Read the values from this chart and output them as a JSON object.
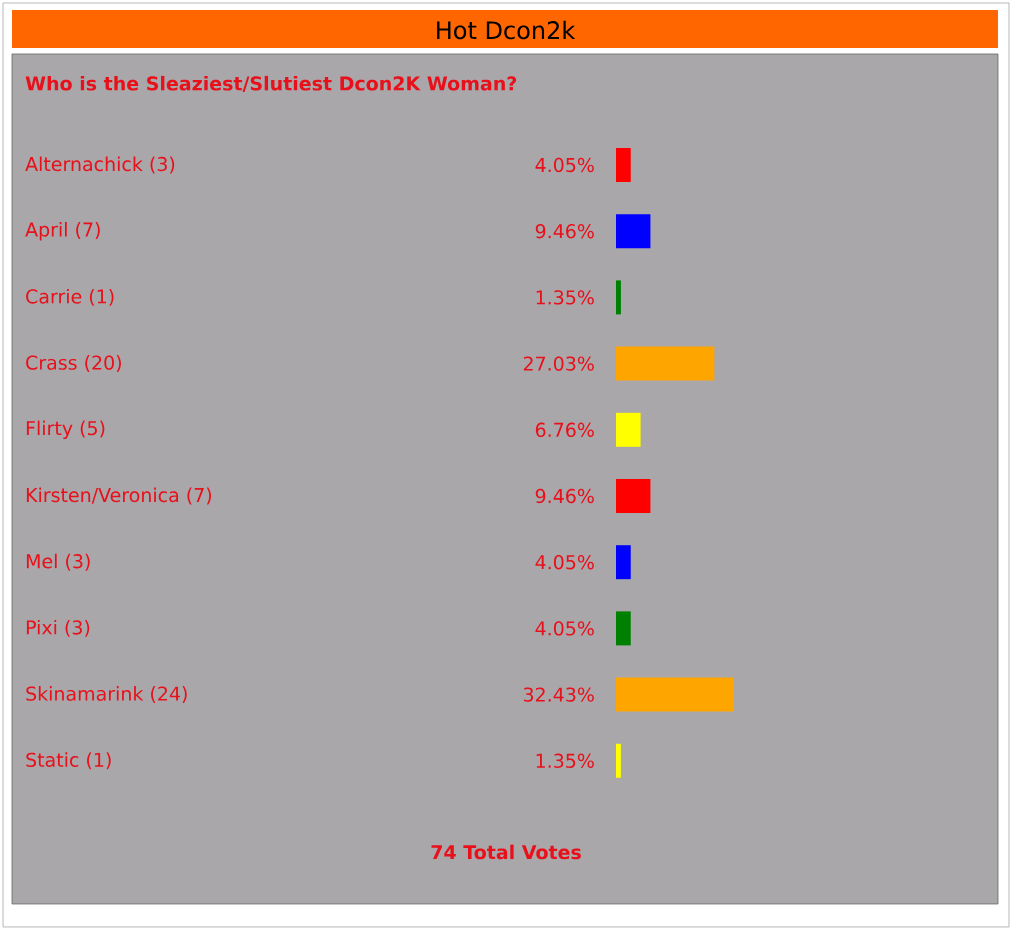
{
  "chart_data": {
    "type": "bar",
    "orientation": "horizontal",
    "title": "Hot Dcon2k",
    "subtitle": "Who is the Sleaziest/Slutiest Dcon2K Woman?",
    "categories": [
      "Alternachick (3)",
      "April (7)",
      "Carrie (1)",
      "Crass (20)",
      "Flirty (5)",
      "Kirsten/Veronica (7)",
      "Mel (3)",
      "Pixi (3)",
      "Skinamarink (24)",
      "Static (1)"
    ],
    "values": [
      4.05,
      9.46,
      1.35,
      27.03,
      6.76,
      9.46,
      4.05,
      4.05,
      32.43,
      1.35
    ],
    "value_labels": [
      "4.05%",
      "9.46%",
      "1.35%",
      "27.03%",
      "6.76%",
      "9.46%",
      "4.05%",
      "4.05%",
      "32.43%",
      "1.35%"
    ],
    "colors": [
      "#ff0000",
      "#0000ff",
      "#008000",
      "#ffa500",
      "#ffff00",
      "#ff0000",
      "#0000ff",
      "#008000",
      "#ffa500",
      "#ffff00"
    ],
    "annotations": [
      "74 Total Votes"
    ]
  }
}
